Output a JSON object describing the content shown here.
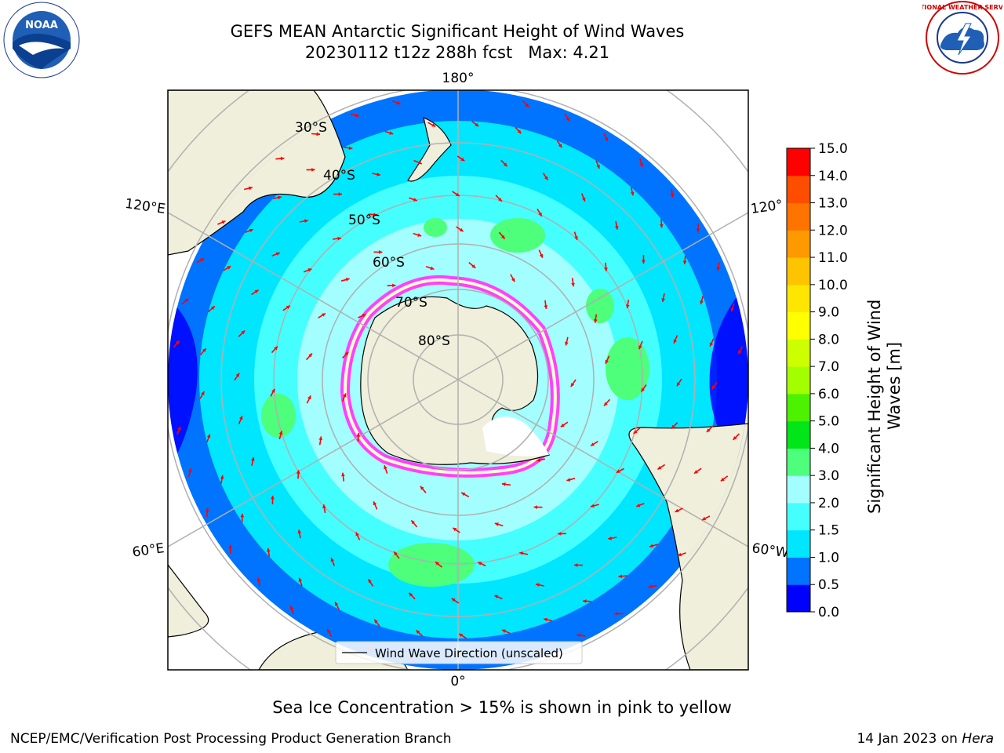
{
  "title": {
    "line1": "GEFS MEAN Antarctic Significant Height of Wind Waves",
    "line2": "20230112 t12z 288h fcst   Max: 4.21"
  },
  "map": {
    "projection": "south-polar-stereographic",
    "center": "South Pole",
    "lon_labels": {
      "top": "180°",
      "bottom": "0°",
      "left_upper": "120°E",
      "left_lower": "60°E",
      "right_upper": "120°",
      "right_lower": "60°W"
    },
    "lat_labels": [
      "30°S",
      "40°S",
      "50°S",
      "60°S",
      "70°S",
      "80°S"
    ],
    "graticule_color": "#b0b0b0",
    "land_color": "#efefdb",
    "vector_color": "#ff0000",
    "legend_label": "Wind Wave Direction (unscaled)"
  },
  "colorbar": {
    "title_line1": "Significant Height of Wind",
    "title_line2": "Waves [m]",
    "ticks": [
      "0.0",
      "0.5",
      "1.0",
      "1.5",
      "2.0",
      "3.0",
      "4.0",
      "5.0",
      "6.0",
      "7.0",
      "8.0",
      "9.0",
      "10.0",
      "11.0",
      "12.0",
      "13.0",
      "14.0",
      "15.0"
    ],
    "colors": [
      "#0000ff",
      "#0073ff",
      "#00e6ff",
      "#45ffff",
      "#a3ffff",
      "#4dff7a",
      "#00e619",
      "#4df200",
      "#a3ff00",
      "#ccff00",
      "#ffff00",
      "#ffe600",
      "#ffc400",
      "#ff9900",
      "#ff7300",
      "#ff4d00",
      "#ff0000"
    ]
  },
  "logos": {
    "left": "NOAA",
    "right": "NATIONAL WEATHER SERVICE"
  },
  "caption": "Sea Ice Concentration > 15% is shown in pink to yellow",
  "footer": {
    "left": "NCEP/EMC/Verification Post Processing Product Generation Branch",
    "right_date": "14 Jan 2023 on",
    "right_host": "Hera"
  }
}
